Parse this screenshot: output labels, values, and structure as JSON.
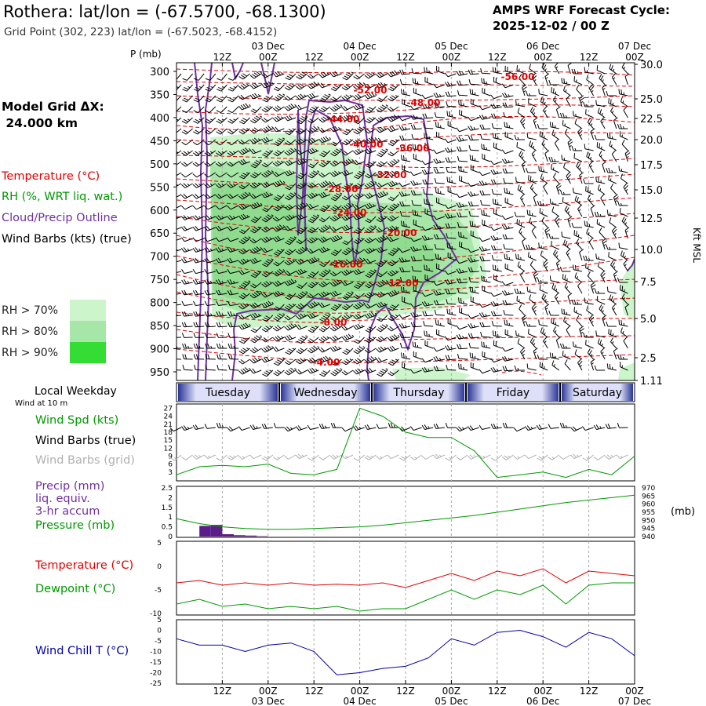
{
  "header": {
    "station": "Rothera:  lat/lon = (-67.5700, -68.1300)",
    "grid_point": "Grid Point (302, 223) lat/lon = (-67.5023, -68.4152)",
    "forecast_title": "AMPS WRF Forecast Cycle:",
    "forecast_cycle": "2025-12-02 / 00  Z"
  },
  "left_legend": {
    "grid_dx_label": "Model Grid ΔX:",
    "grid_dx_value": " 24.000 km",
    "temperature": "Temperature (°C)",
    "rh": "RH (%, WRT liq. wat.)",
    "cloud": "Cloud/Precip Outline",
    "wind": "Wind Barbs (kts) (true)",
    "rh70": "RH > 70%",
    "rh80": "RH > 80%",
    "rh90": "RH > 90%",
    "local_weekday": "Local Weekday",
    "wind_at": "Wind at 10 m",
    "wind_spd": "Wind Spd (kts)",
    "wind_true": "Wind Barbs (true)",
    "wind_grid": "Wind Barbs (grid)",
    "precip_1": "Precip (mm)",
    "precip_2": "liq. equiv.",
    "precip_3": "3-hr accum",
    "pressure": "Pressure (mb)",
    "temp2": "Temperature (°C)",
    "dewpoint": "Dewpoint (°C)",
    "windchill": "Wind Chill T (°C)"
  },
  "colors": {
    "temperature": "#e00000",
    "rh": "#009900",
    "cloud": "#7030a0",
    "gray": "#b0b0b0",
    "rh70": "#ccf5cc",
    "rh80": "#a6e6a6",
    "rh90": "#33dd33",
    "blue": "#0000aa",
    "precip": "#5b1d8a"
  },
  "chart_data": [
    {
      "type": "heatmap",
      "title": "Time-height cross section",
      "ylabel": "P (mb)",
      "y2label": "Kft MSL",
      "pressure_ticks": [
        300,
        350,
        400,
        450,
        500,
        550,
        600,
        650,
        700,
        750,
        800,
        850,
        900,
        950
      ],
      "height_ticks": [
        "30.0",
        "25.0",
        "22.5",
        "20.0",
        "17.5",
        "15.0",
        "12.5",
        "10.0",
        "7.5",
        "5.0",
        "2.5",
        "1.11"
      ],
      "top_time_labels": [
        "12Z",
        "00Z",
        "12Z",
        "00Z",
        "12Z",
        "00Z",
        "12Z",
        "00Z",
        "12Z",
        "00Z"
      ],
      "top_date_labels": [
        "03 Dec",
        "04 Dec",
        "05 Dec",
        "06 Dec",
        "07 Dec"
      ],
      "temperature_contours_degC": [
        "-56.00",
        "-52.00",
        "-48.00",
        "-44.00",
        "-40.00",
        "-36.00",
        "-32.00",
        "-28.00",
        "-24.00",
        "-20.00",
        "-16.00",
        "-12.00",
        "-8.00",
        "-4.00"
      ],
      "rh_levels": [
        "RH > 70%",
        "RH > 80%",
        "RH > 90%"
      ]
    },
    {
      "type": "table",
      "title": "Local Weekday",
      "days": [
        "Tuesday",
        "Wednesday",
        "Thursday",
        "Friday",
        "Saturday"
      ]
    },
    {
      "type": "line",
      "title": "Wind Spd (kts)",
      "hours": [
        0,
        6,
        12,
        18,
        24,
        30,
        36,
        42,
        48,
        54,
        60,
        66,
        72,
        78,
        84,
        90,
        96,
        102,
        108,
        114,
        120
      ],
      "values": [
        2,
        5,
        5.5,
        5,
        6,
        2.5,
        2,
        4,
        27,
        24,
        18,
        16,
        16,
        11,
        1,
        2,
        3,
        1,
        4,
        2,
        9
      ],
      "yticks": [
        3,
        6,
        9,
        12,
        15,
        18,
        21,
        24,
        27
      ],
      "ylim": [
        0,
        28
      ]
    },
    {
      "type": "bar",
      "title": "Precip (mm) liq. equiv. 3-hr accum",
      "hours": [
        9,
        12,
        15,
        18,
        21,
        24
      ],
      "values": [
        0.55,
        0.6,
        0.12,
        0.07,
        0.05,
        0.02
      ],
      "yticks": [
        0,
        0.5,
        1,
        1.5,
        2,
        2.5
      ],
      "ylim": [
        0,
        2.5
      ]
    },
    {
      "type": "line",
      "title": "Pressure (mb)",
      "hours": [
        0,
        6,
        12,
        18,
        24,
        30,
        36,
        42,
        48,
        54,
        60,
        66,
        72,
        78,
        84,
        90,
        96,
        102,
        108,
        114,
        120
      ],
      "values": [
        951,
        948,
        946,
        945,
        944.5,
        944.5,
        945,
        945.5,
        946,
        947,
        948.5,
        950,
        951.5,
        953,
        955,
        957,
        959,
        961,
        962.5,
        964,
        965.5
      ],
      "yticks": [
        940,
        945,
        950,
        955,
        960,
        965,
        970
      ],
      "ylim": [
        940,
        970
      ]
    },
    {
      "type": "line",
      "title": "Temperature / Dewpoint (°C)",
      "hours": [
        0,
        6,
        12,
        18,
        24,
        30,
        36,
        42,
        48,
        54,
        60,
        66,
        72,
        78,
        84,
        90,
        96,
        102,
        108,
        114,
        120
      ],
      "series": [
        {
          "name": "Temperature (°C)",
          "values": [
            -3.5,
            -3,
            -4,
            -3.5,
            -4,
            -3.5,
            -4,
            -3.8,
            -4,
            -3.5,
            -4.5,
            -3,
            -1.5,
            -3,
            -1,
            -2,
            -0.5,
            -3.5,
            -1,
            -1.5,
            -2
          ]
        },
        {
          "name": "Dewpoint (°C)",
          "values": [
            -8,
            -7,
            -8.5,
            -8,
            -9,
            -8.5,
            -9,
            -8.5,
            -9.5,
            -9,
            -9,
            -7,
            -5,
            -7,
            -5,
            -6,
            -4,
            -8,
            -4,
            -3.5,
            -3.5
          ]
        }
      ],
      "yticks": [
        5,
        0,
        -5,
        -10
      ],
      "ylim": [
        -10,
        5
      ]
    },
    {
      "type": "line",
      "title": "Wind Chill T (°C)",
      "hours": [
        0,
        6,
        12,
        18,
        24,
        30,
        36,
        42,
        48,
        54,
        60,
        66,
        72,
        78,
        84,
        90,
        96,
        102,
        108,
        114,
        120
      ],
      "values": [
        -4,
        -7,
        -7,
        -10,
        -7,
        -6,
        -10,
        -21,
        -20,
        -18,
        -17,
        -13,
        -4,
        -7,
        -1,
        0,
        -3,
        -8,
        -1,
        -4,
        -12
      ],
      "yticks": [
        5,
        0,
        -5,
        -10,
        -15,
        -20,
        -25
      ],
      "ylim": [
        -25,
        5
      ]
    }
  ],
  "bottom_axis": {
    "time_labels": [
      "12Z",
      "00Z",
      "12Z",
      "00Z",
      "12Z",
      "00Z",
      "12Z",
      "00Z",
      "12Z",
      "00Z"
    ],
    "date_labels": [
      "03 Dec",
      "04 Dec",
      "05 Dec",
      "06 Dec",
      "07 Dec"
    ]
  }
}
